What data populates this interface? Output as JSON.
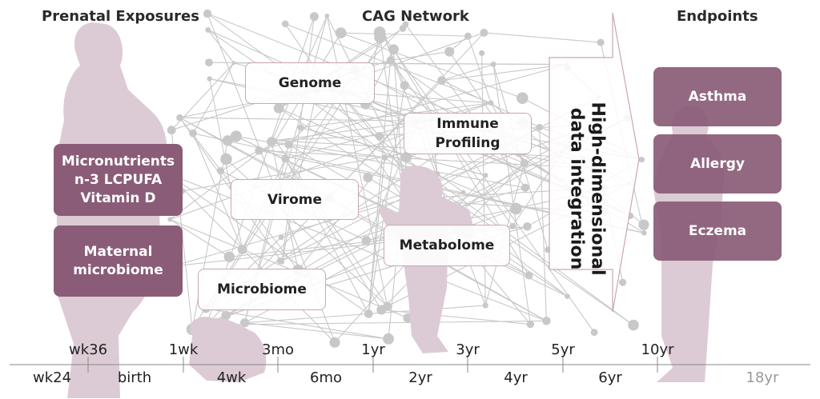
{
  "headings": {
    "prenatal": "Prenatal Exposures",
    "network": "CAG Network",
    "endpoints": "Endpoints"
  },
  "prenatal_boxes": [
    {
      "lines": [
        "Micronutrients",
        "n-3 LCPUFA",
        "Vitamin D"
      ]
    },
    {
      "lines": [
        "Maternal",
        "microbiome"
      ]
    }
  ],
  "network_boxes": {
    "genome": {
      "lines": [
        "Genome"
      ]
    },
    "immune": {
      "lines": [
        "Immune",
        "Profiling"
      ]
    },
    "virome": {
      "lines": [
        "Virome"
      ]
    },
    "metabolome": {
      "lines": [
        "Metabolome"
      ]
    },
    "microbiome": {
      "lines": [
        "Microbiome"
      ]
    }
  },
  "integration": {
    "lines": [
      "High-dimensional",
      "data integration"
    ]
  },
  "endpoints": [
    {
      "label": "Asthma"
    },
    {
      "label": "Allergy"
    },
    {
      "label": "Eczema"
    }
  ],
  "timeline": {
    "top_ticks": [
      "wk36",
      "1wk",
      "3mo",
      "1yr",
      "3yr",
      "5yr",
      "10yr"
    ],
    "bottom_ticks": [
      "wk24",
      "birth",
      "4wk",
      "6mo",
      "2yr",
      "4yr",
      "6yr",
      "18yr"
    ]
  },
  "colors": {
    "box_fill": "#8a5c77",
    "box_border": "#c9a6b5",
    "silhouette": "#dccbd4",
    "network": "#c8c8c8",
    "axis": "#888888"
  }
}
